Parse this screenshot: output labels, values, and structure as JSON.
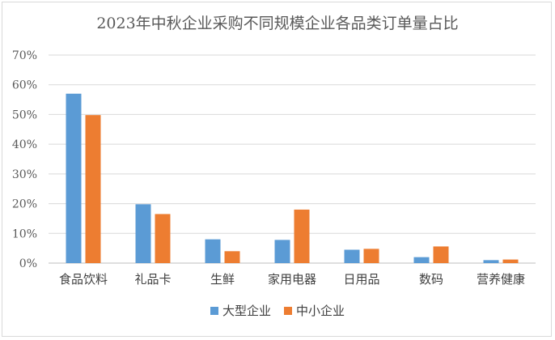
{
  "chart_data": {
    "type": "bar",
    "title": "2023年中秋企业采购不同规模企业各品类订单量占比",
    "categories": [
      "食品饮料",
      "礼品卡",
      "生鲜",
      "家用电器",
      "日用品",
      "数码",
      "营养健康"
    ],
    "series": [
      {
        "name": "大型企业",
        "color": "#5b9bd5",
        "values": [
          57,
          19.8,
          8,
          7.8,
          4.5,
          2,
          1
        ]
      },
      {
        "name": "中小企业",
        "color": "#ed7d31",
        "values": [
          49.8,
          16.5,
          4,
          18,
          4.8,
          5.6,
          1.2
        ]
      }
    ],
    "yticks": [
      "0%",
      "10%",
      "20%",
      "30%",
      "40%",
      "50%",
      "60%",
      "70%"
    ],
    "ylim": [
      0,
      70
    ],
    "ylabel": "",
    "xlabel": "",
    "grid": true,
    "legend_position": "bottom"
  }
}
